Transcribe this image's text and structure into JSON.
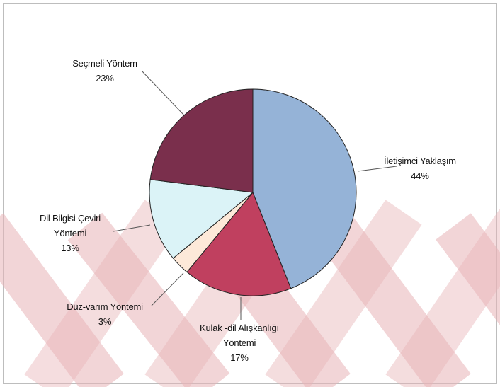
{
  "chart_data": {
    "type": "pie",
    "slices": [
      {
        "label_lines": [
          "İletişimci Yaklaşım"
        ],
        "percent_label": "44%",
        "value": 44,
        "color": "#95b3d7"
      },
      {
        "label_lines": [
          "Kulak -dil Alışkanlığı",
          "Yöntemi"
        ],
        "percent_label": "17%",
        "value": 17,
        "color": "#c0405f"
      },
      {
        "label_lines": [
          "Düz-varım Yöntemi"
        ],
        "percent_label": "3%",
        "value": 3,
        "color": "#fde9d9"
      },
      {
        "label_lines": [
          "Dil Bilgisi  Çeviri",
          "Yöntemi"
        ],
        "percent_label": "13%",
        "value": 13,
        "color": "#dbf3f7"
      },
      {
        "label_lines": [
          "Seçmeli Yöntem"
        ],
        "percent_label": "23%",
        "value": 23,
        "color": "#7a2f4c"
      }
    ],
    "start_angle_deg": 0,
    "direction": "clockwise",
    "legend": "none",
    "grid": false
  },
  "watermark": {
    "color": "#e8b4b8"
  }
}
